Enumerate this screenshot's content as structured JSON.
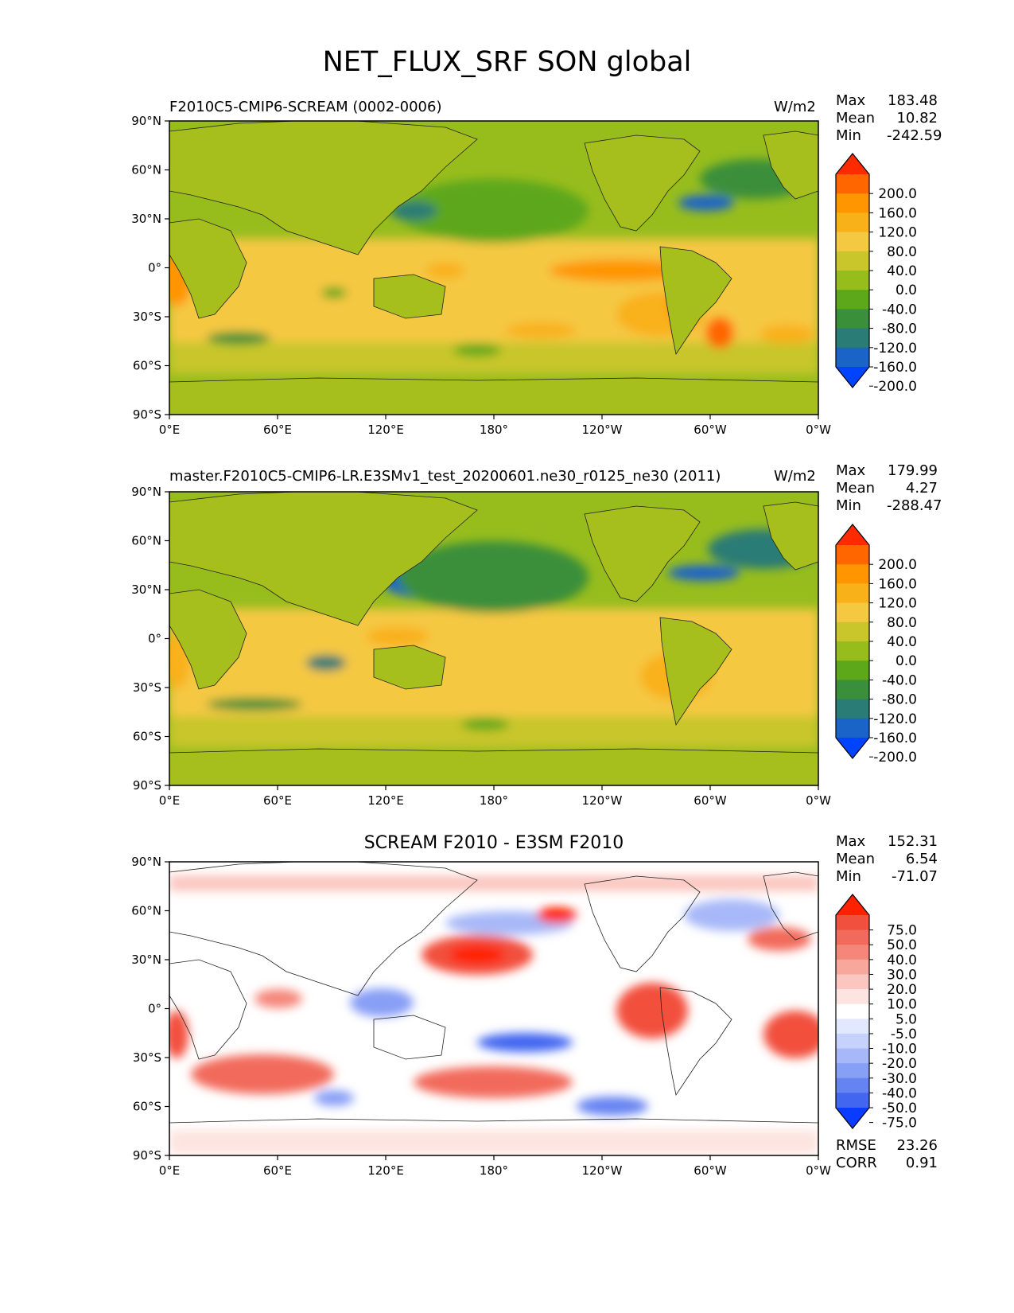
{
  "figure": {
    "title": "NET_FLUX_SRF SON global"
  },
  "lat_ticks": [
    "90°N",
    "60°N",
    "30°N",
    "0°",
    "30°S",
    "60°S",
    "90°S"
  ],
  "lon_ticks": [
    "0°E",
    "60°E",
    "120°E",
    "180°",
    "120°W",
    "60°W",
    "0°W"
  ],
  "panels": [
    {
      "title_left": "F2010C5-CMIP6-SCREAM (0002-0006)",
      "title_center": "",
      "units": "W/m2",
      "stats": [
        {
          "label": "Max",
          "value": "183.48"
        },
        {
          "label": "Mean",
          "value": "10.82"
        },
        {
          "label": "Min",
          "value": "-242.59"
        }
      ],
      "extra_stats": [],
      "colorbar": {
        "labels": [
          "200.0",
          "160.0",
          "120.0",
          "80.0",
          "40.0",
          "0.0",
          "-40.0",
          "-80.0",
          "-120.0",
          "-160.0",
          "-200.0"
        ],
        "colors": [
          "#ff2a00",
          "#ff6600",
          "#ff9500",
          "#f9b11a",
          "#f5c842",
          "#c8c62a",
          "#97bd1d",
          "#5da71a",
          "#3a8f3a",
          "#2a7c76",
          "#1a64c8",
          "#0044ff"
        ]
      }
    },
    {
      "title_left": "master.F2010C5-CMIP6-LR.E3SMv1_test_20200601.ne30_r0125_ne30 (2011)",
      "title_center": "",
      "units": "W/m2",
      "stats": [
        {
          "label": "Max",
          "value": "179.99"
        },
        {
          "label": "Mean",
          "value": "4.27"
        },
        {
          "label": "Min",
          "value": "-288.47"
        }
      ],
      "extra_stats": [],
      "colorbar": {
        "labels": [
          "200.0",
          "160.0",
          "120.0",
          "80.0",
          "40.0",
          "0.0",
          "-40.0",
          "-80.0",
          "-120.0",
          "-160.0",
          "-200.0"
        ],
        "colors": [
          "#ff2a00",
          "#ff6600",
          "#ff9500",
          "#f9b11a",
          "#f5c842",
          "#c8c62a",
          "#97bd1d",
          "#5da71a",
          "#3a8f3a",
          "#2a7c76",
          "#1a64c8",
          "#0044ff"
        ]
      }
    },
    {
      "title_left": "",
      "title_center": "SCREAM F2010 - E3SM F2010",
      "units": "",
      "stats": [
        {
          "label": "Max",
          "value": "152.31"
        },
        {
          "label": "Mean",
          "value": "6.54"
        },
        {
          "label": "Min",
          "value": "-71.07"
        }
      ],
      "extra_stats": [
        {
          "label": "RMSE",
          "value": "23.26"
        },
        {
          "label": "CORR",
          "value": "0.91"
        }
      ],
      "colorbar": {
        "labels": [
          "75.0",
          "50.0",
          "40.0",
          "30.0",
          "20.0",
          "10.0",
          "5.0",
          "-5.0",
          "-10.0",
          "-20.0",
          "-30.0",
          "-40.0",
          "-50.0",
          "-75.0"
        ],
        "colors": [
          "#ff2200",
          "#f2503e",
          "#f26a5c",
          "#f5877a",
          "#f7a79c",
          "#fac6bf",
          "#fde4e0",
          "#ffffff",
          "#e2e8fd",
          "#c6d2fb",
          "#a7b8f8",
          "#889ff6",
          "#6683f2",
          "#4266f0",
          "#0a3cff"
        ]
      }
    }
  ]
}
